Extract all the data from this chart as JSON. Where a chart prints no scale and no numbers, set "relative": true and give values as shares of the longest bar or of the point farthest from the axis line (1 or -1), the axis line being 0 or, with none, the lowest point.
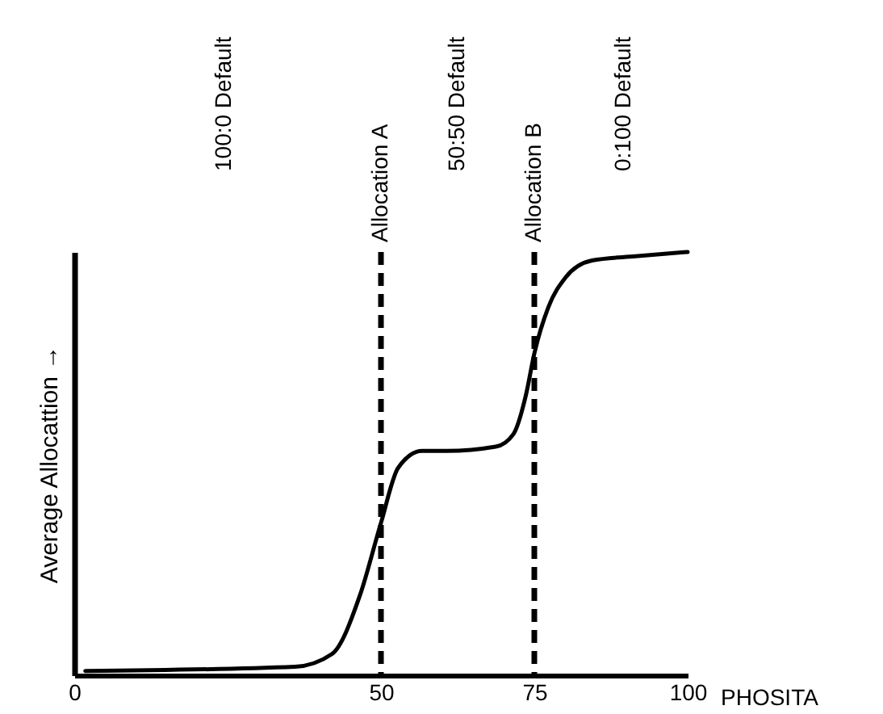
{
  "chart_data": {
    "type": "line",
    "xlabel": "PHOSITA",
    "ylabel": "Average Allocattion →",
    "relative": true,
    "x": [
      1.8,
      36,
      42,
      46.6,
      50,
      52.8,
      56.7,
      60.7,
      68.7,
      71.6,
      73.6,
      75,
      77.3,
      80.1,
      84.4,
      91.5,
      100
    ],
    "series": [
      {
        "color": "#000000",
        "values": [
          0.01,
          0.02,
          0.05,
          0.19,
          0.36,
          0.49,
          0.53,
          0.53,
          0.54,
          0.57,
          0.66,
          0.76,
          0.87,
          0.94,
          0.98,
          0.99,
          1
        ]
      }
    ],
    "xlim": [
      0,
      100
    ],
    "xticks": [
      0,
      50,
      75,
      100
    ],
    "ref_lines": [
      {
        "axis": "x",
        "value": 50,
        "label": "Allocation A",
        "color": "#000000",
        "line_style": "dashed"
      },
      {
        "axis": "x",
        "value": 75,
        "label": "Allocation B",
        "color": "#000000",
        "line_style": "dashed"
      }
    ],
    "annotations": [
      "100:0 Default",
      "50:50 Default",
      "0:100 Default"
    ],
    "grid": false,
    "marker": "none",
    "line_style": "solid"
  }
}
